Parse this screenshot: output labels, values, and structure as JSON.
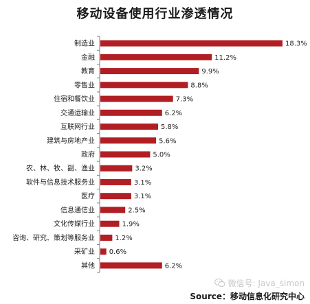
{
  "colors": {
    "bar": "#b11f24",
    "axis": "#7f7f7f",
    "text": "#222222"
  },
  "watermark": {
    "icon": "wechat-icon",
    "text": "微信号: Java_simon"
  },
  "source": "Source：移动信息化研究中心",
  "chart_data": {
    "type": "bar",
    "orientation": "horizontal",
    "title": "移动设备使用行业渗透情况",
    "categories": [
      "制造业",
      "金融",
      "教育",
      "零售业",
      "住宿和餐饮业",
      "交通运输业",
      "互联网行业",
      "建筑与房地产业",
      "政府",
      "农、林、牧、副、渔业",
      "软件与信息技术服务业",
      "医疗",
      "信息通信业",
      "文化传媒行业",
      "咨询、研究、策划等服务业",
      "采矿业",
      "其他"
    ],
    "values": [
      18.3,
      11.2,
      9.9,
      8.8,
      7.3,
      6.2,
      5.8,
      5.6,
      5.0,
      3.2,
      3.1,
      3.1,
      2.5,
      1.9,
      1.2,
      0.6,
      6.2
    ],
    "value_labels": [
      "18.3%",
      "11.2%",
      "9.9%",
      "8.8%",
      "7.3%",
      "6.2%",
      "5.8%",
      "5.6%",
      "5.0%",
      "3.2%",
      "3.1%",
      "3.1%",
      "2.5%",
      "1.9%",
      "1.2%",
      "0.6%",
      "6.2%"
    ],
    "xlim": [
      0,
      18.3
    ],
    "grid": false,
    "legend": "none"
  }
}
